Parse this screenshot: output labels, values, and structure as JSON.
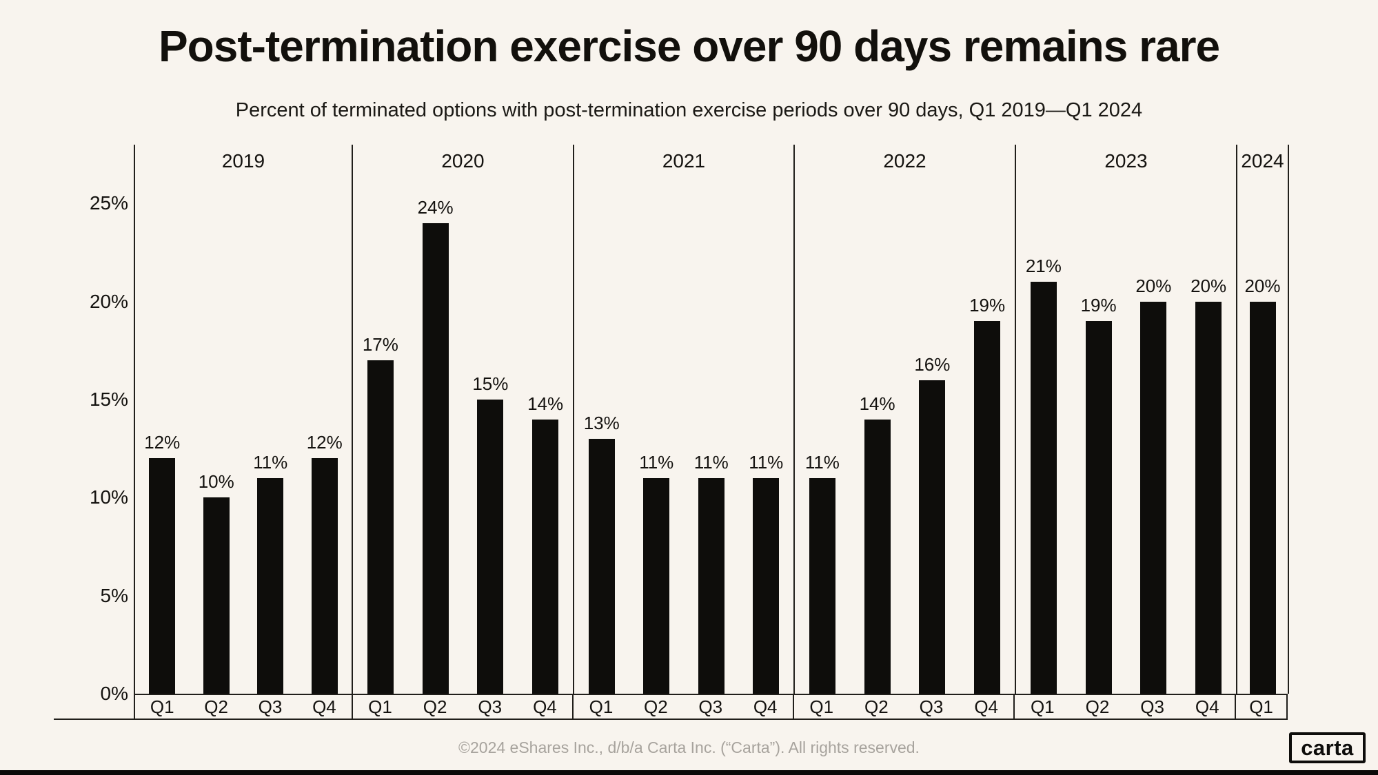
{
  "header": {
    "title": "Post-termination exercise over 90 days remains rare",
    "subtitle": "Percent of terminated options with post-termination exercise periods over 90 days, Q1 2019—Q1 2024"
  },
  "chart_data": {
    "type": "bar",
    "title": "Post-termination exercise over 90 days remains rare",
    "subtitle": "Percent of terminated options with post-termination exercise periods over 90 days, Q1 2019—Q1 2024",
    "xlabel": "",
    "ylabel": "",
    "ylim_pct": [
      0,
      28
    ],
    "grid": false,
    "legend": null,
    "y_ticks": [
      {
        "value": 0,
        "label": "0%"
      },
      {
        "value": 5,
        "label": "5%"
      },
      {
        "value": 10,
        "label": "10%"
      },
      {
        "value": 15,
        "label": "15%"
      },
      {
        "value": 20,
        "label": "20%"
      },
      {
        "value": 25,
        "label": "25%"
      }
    ],
    "value_label_suffix": "%",
    "groups": [
      {
        "year": "2019",
        "quarters": [
          "Q1",
          "Q2",
          "Q3",
          "Q4"
        ],
        "values": [
          12,
          10,
          11,
          12
        ]
      },
      {
        "year": "2020",
        "quarters": [
          "Q1",
          "Q2",
          "Q3",
          "Q4"
        ],
        "values": [
          17,
          24,
          15,
          14
        ]
      },
      {
        "year": "2021",
        "quarters": [
          "Q1",
          "Q2",
          "Q3",
          "Q4"
        ],
        "values": [
          13,
          11,
          11,
          11
        ]
      },
      {
        "year": "2022",
        "quarters": [
          "Q1",
          "Q2",
          "Q3",
          "Q4"
        ],
        "values": [
          11,
          14,
          16,
          19
        ]
      },
      {
        "year": "2023",
        "quarters": [
          "Q1",
          "Q2",
          "Q3",
          "Q4"
        ],
        "values": [
          21,
          19,
          20,
          20
        ]
      },
      {
        "year": "2024",
        "quarters": [
          "Q1"
        ],
        "values": [
          20
        ]
      }
    ],
    "bar_color": "#0e0d0b"
  },
  "footer": {
    "copyright": "©2024 eShares Inc., d/b/a Carta Inc. (“Carta”). All rights reserved.",
    "logo_text": "carta"
  },
  "colors": {
    "background": "#f8f4ee",
    "bar": "#0e0d0b",
    "line": "#211f1b",
    "text": "#14120f",
    "muted_text": "#a7a39d",
    "bottom_strip": "#0b0a09"
  }
}
